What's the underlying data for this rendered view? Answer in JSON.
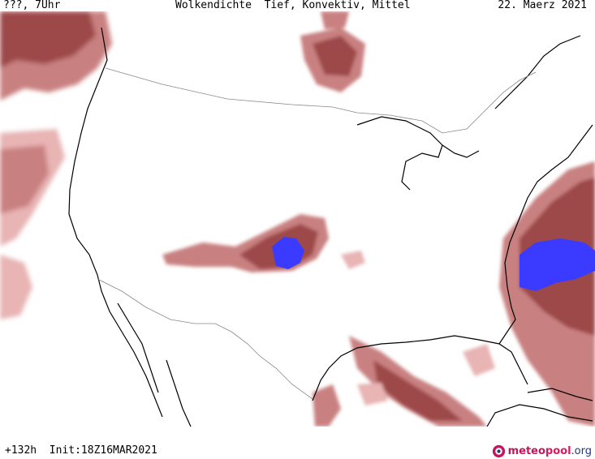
{
  "header": {
    "left": "???, 7Uhr",
    "title": "Wolkendichte  Tief, Konvektiv, Mittel",
    "date": "22. Maerz 2021"
  },
  "footer": {
    "run_info": "+132h  Init:18Z16MAR2021",
    "brand_part1": "meteo",
    "brand_part2": "pool",
    "brand_part3": ".org"
  },
  "colors": {
    "cloud_light": "#e8b4b4",
    "cloud_medium": "#c98080",
    "cloud_dark": "#9e4848",
    "convective": "#3b3bff",
    "coastline": "#000000",
    "border": "#888888"
  }
}
